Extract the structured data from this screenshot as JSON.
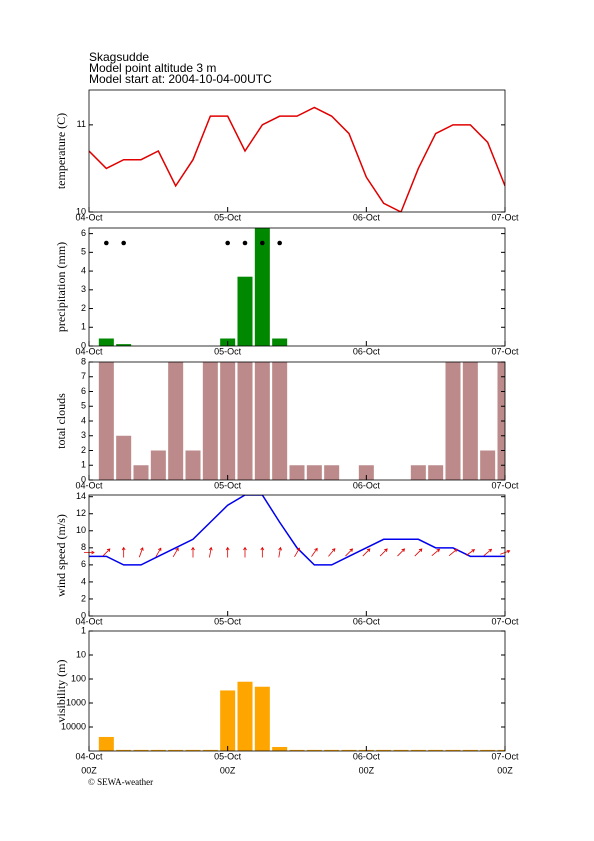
{
  "header": {
    "station": "Skagsudde",
    "altitude": "Model point altitude  3 m",
    "model_start": "Model start at: 2004-10-04-00UTC"
  },
  "footer": "© SEWA-weather",
  "chart_data": [
    {
      "type": "line",
      "y_label": "temperature (C)",
      "color": "#e00000",
      "x": [
        0,
        3,
        6,
        9,
        12,
        15,
        18,
        21,
        24,
        27,
        30,
        33,
        36,
        39,
        42,
        45,
        48,
        51,
        54,
        57,
        60,
        63,
        66,
        69,
        72
      ],
      "values": [
        10.7,
        10.5,
        10.6,
        10.6,
        10.7,
        10.3,
        10.6,
        11.1,
        11.1,
        10.7,
        11.0,
        11.1,
        11.1,
        11.2,
        11.1,
        10.9,
        10.4,
        10.1,
        10.0,
        10.5,
        10.9,
        11.0,
        11.0,
        10.8,
        10.3
      ],
      "xlim": [
        0,
        72
      ],
      "xticks": [
        {
          "value": 0,
          "label": "04-Oct"
        },
        {
          "value": 24,
          "label": "05-Oct"
        },
        {
          "value": 48,
          "label": "06-Oct"
        },
        {
          "value": 72,
          "label": "07-Oct"
        }
      ],
      "ylim": [
        10,
        11.4
      ],
      "yticks": [
        10,
        11
      ]
    },
    {
      "type": "bar",
      "y_label": "precipitation (mm)",
      "color": "#008800",
      "x": [
        3,
        6,
        9,
        12,
        15,
        18,
        21,
        24,
        27,
        30,
        33,
        36,
        39,
        42,
        45,
        48,
        51,
        54,
        57,
        60,
        63,
        66,
        69,
        72
      ],
      "values": [
        0.4,
        0.1,
        0,
        0,
        0,
        0,
        0,
        0.4,
        3.7,
        6.3,
        0.4,
        0,
        0,
        0,
        0,
        0,
        0,
        0,
        0,
        0,
        0,
        0,
        0,
        0
      ],
      "symbol_x": [
        3,
        6,
        24,
        27,
        30,
        33
      ],
      "xlim": [
        0,
        72
      ],
      "xticks": [
        {
          "value": 0,
          "label": "04-Oct"
        },
        {
          "value": 24,
          "label": "05-Oct"
        },
        {
          "value": 48,
          "label": "06-Oct"
        },
        {
          "value": 72,
          "label": "07-Oct"
        }
      ],
      "ylim": [
        0,
        6.3
      ],
      "yticks": [
        0,
        1,
        2,
        3,
        4,
        5,
        6
      ]
    },
    {
      "type": "bar",
      "y_label": "total clouds",
      "color": "#bc8a8a",
      "x": [
        3,
        6,
        9,
        12,
        15,
        18,
        21,
        24,
        27,
        30,
        33,
        36,
        39,
        42,
        45,
        48,
        51,
        54,
        57,
        60,
        63,
        66,
        69,
        72
      ],
      "values": [
        8,
        3,
        1,
        2,
        8,
        2,
        8,
        8,
        8,
        8,
        8,
        1,
        1,
        1,
        0,
        1,
        0,
        0,
        1,
        1,
        8,
        8,
        2,
        8
      ],
      "xlim": [
        0,
        72
      ],
      "xticks": [
        {
          "value": 0,
          "label": "04-Oct"
        },
        {
          "value": 24,
          "label": "05-Oct"
        },
        {
          "value": 48,
          "label": "06-Oct"
        },
        {
          "value": 72,
          "label": "07-Oct"
        }
      ],
      "ylim": [
        0,
        8
      ],
      "yticks": [
        0,
        1,
        2,
        3,
        4,
        5,
        6,
        7,
        8
      ]
    },
    {
      "type": "line",
      "y_label": "wind speed (m/s)",
      "color": "#0000ee",
      "arrow_color": "#e00000",
      "x": [
        0,
        3,
        6,
        9,
        12,
        15,
        18,
        21,
        24,
        27,
        30,
        33,
        36,
        39,
        42,
        45,
        48,
        51,
        54,
        57,
        60,
        63,
        66,
        69,
        72
      ],
      "values": [
        7,
        7,
        6,
        6,
        7,
        8,
        9,
        11,
        13,
        14.2,
        14.2,
        11,
        8,
        6,
        6,
        7,
        8,
        9,
        9,
        9,
        8,
        8,
        7,
        7,
        7
      ],
      "wind_dir": [
        270,
        225,
        180,
        200,
        210,
        210,
        180,
        190,
        180,
        180,
        180,
        190,
        210,
        215,
        220,
        225,
        225,
        225,
        225,
        225,
        230,
        230,
        235,
        230,
        250
      ],
      "xlim": [
        0,
        72
      ],
      "xticks": [
        {
          "value": 0,
          "label": "04-Oct"
        },
        {
          "value": 24,
          "label": "05-Oct"
        },
        {
          "value": 48,
          "label": "06-Oct"
        },
        {
          "value": 72,
          "label": "07-Oct"
        }
      ],
      "ylim": [
        0,
        14.2
      ],
      "yticks": [
        0,
        2,
        4,
        6,
        8,
        10,
        12,
        14
      ]
    },
    {
      "type": "bar",
      "y_label": "visibility (m)",
      "color": "#ffa500",
      "yscale": "log",
      "y_inverted": true,
      "x": [
        3,
        6,
        9,
        12,
        15,
        18,
        21,
        24,
        27,
        30,
        33,
        36,
        39,
        42,
        45,
        48,
        51,
        54,
        57,
        60,
        63,
        66,
        69,
        72
      ],
      "values": [
        26000,
        90000,
        90000,
        90000,
        90000,
        90000,
        90000,
        300,
        130,
        210,
        68000,
        90000,
        90000,
        90000,
        90000,
        90000,
        90000,
        90000,
        90000,
        90000,
        90000,
        90000,
        90000,
        90000
      ],
      "xlim": [
        0,
        72
      ],
      "xticks": [
        {
          "value": 0,
          "label": "04-Oct"
        },
        {
          "value": 24,
          "label": "05-Oct"
        },
        {
          "value": 48,
          "label": "06-Oct"
        },
        {
          "value": 72,
          "label": "07-Oct"
        }
      ],
      "xtick_sublabels": [
        "00Z",
        "00Z",
        "00Z",
        "00Z"
      ],
      "ylim": [
        1,
        100000
      ],
      "yticks": [
        1,
        10,
        100,
        1000,
        10000
      ]
    }
  ]
}
